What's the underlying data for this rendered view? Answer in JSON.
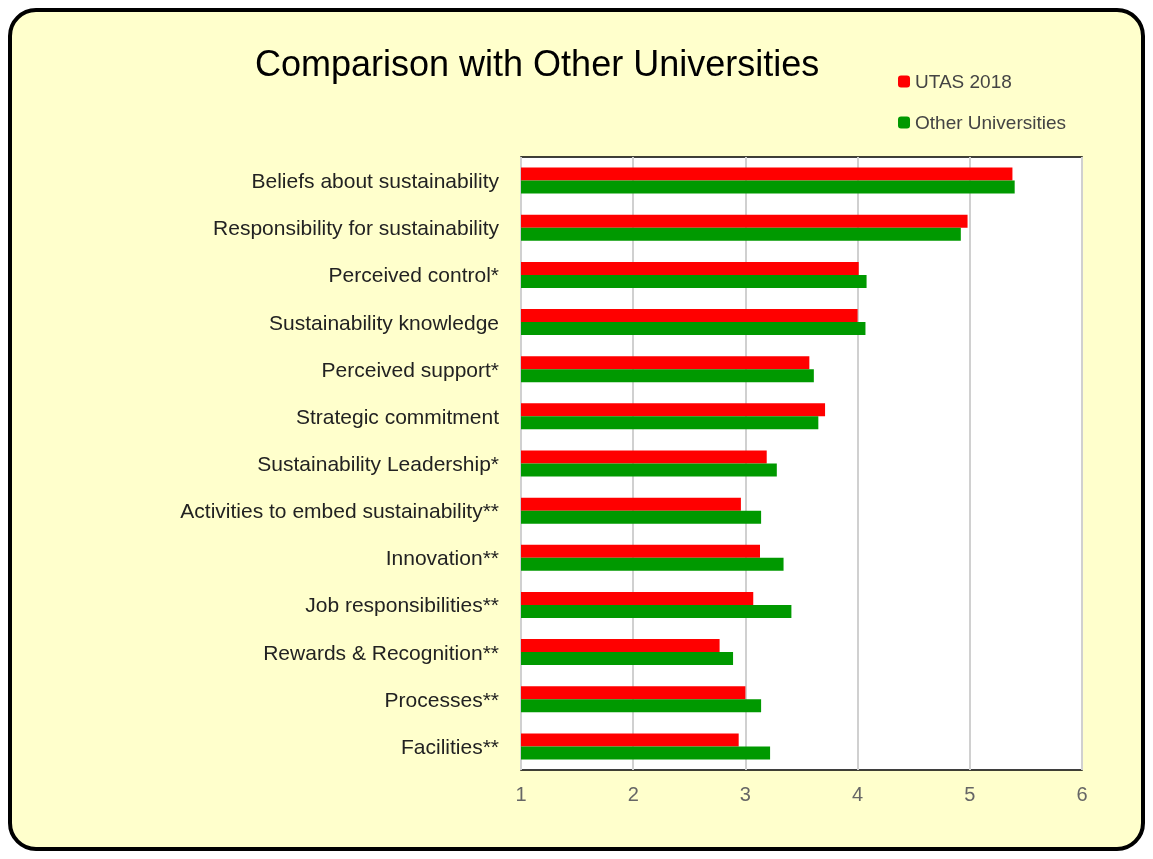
{
  "chart_data": {
    "type": "bar",
    "orientation": "horizontal",
    "title": "Comparison with Other Universities",
    "categories": [
      "Beliefs about sustainability",
      "Responsibility for sustainability",
      "Perceived control*",
      "Sustainability knowledge",
      "Perceived support*",
      "Strategic commitment",
      "Sustainability Leadership*",
      "Activities to embed sustainability**",
      "Innovation**",
      "Job responsibilities**",
      "Rewards & Recognition**",
      "Processes**",
      "Facilities**"
    ],
    "series": [
      {
        "name": "UTAS 2018",
        "color": "#ff0000",
        "values": [
          5.38,
          4.98,
          4.01,
          4.0,
          3.57,
          3.71,
          3.19,
          2.96,
          3.13,
          3.07,
          2.77,
          3.0,
          2.94
        ]
      },
      {
        "name": "Other Universities",
        "color": "#009900",
        "values": [
          5.4,
          4.92,
          4.08,
          4.07,
          3.61,
          3.65,
          3.28,
          3.14,
          3.34,
          3.41,
          2.89,
          3.14,
          3.22
        ]
      }
    ],
    "xlim": [
      1,
      6
    ],
    "xticks": [
      1,
      2,
      3,
      4,
      5,
      6
    ],
    "grid": "x",
    "legend": "top right"
  }
}
